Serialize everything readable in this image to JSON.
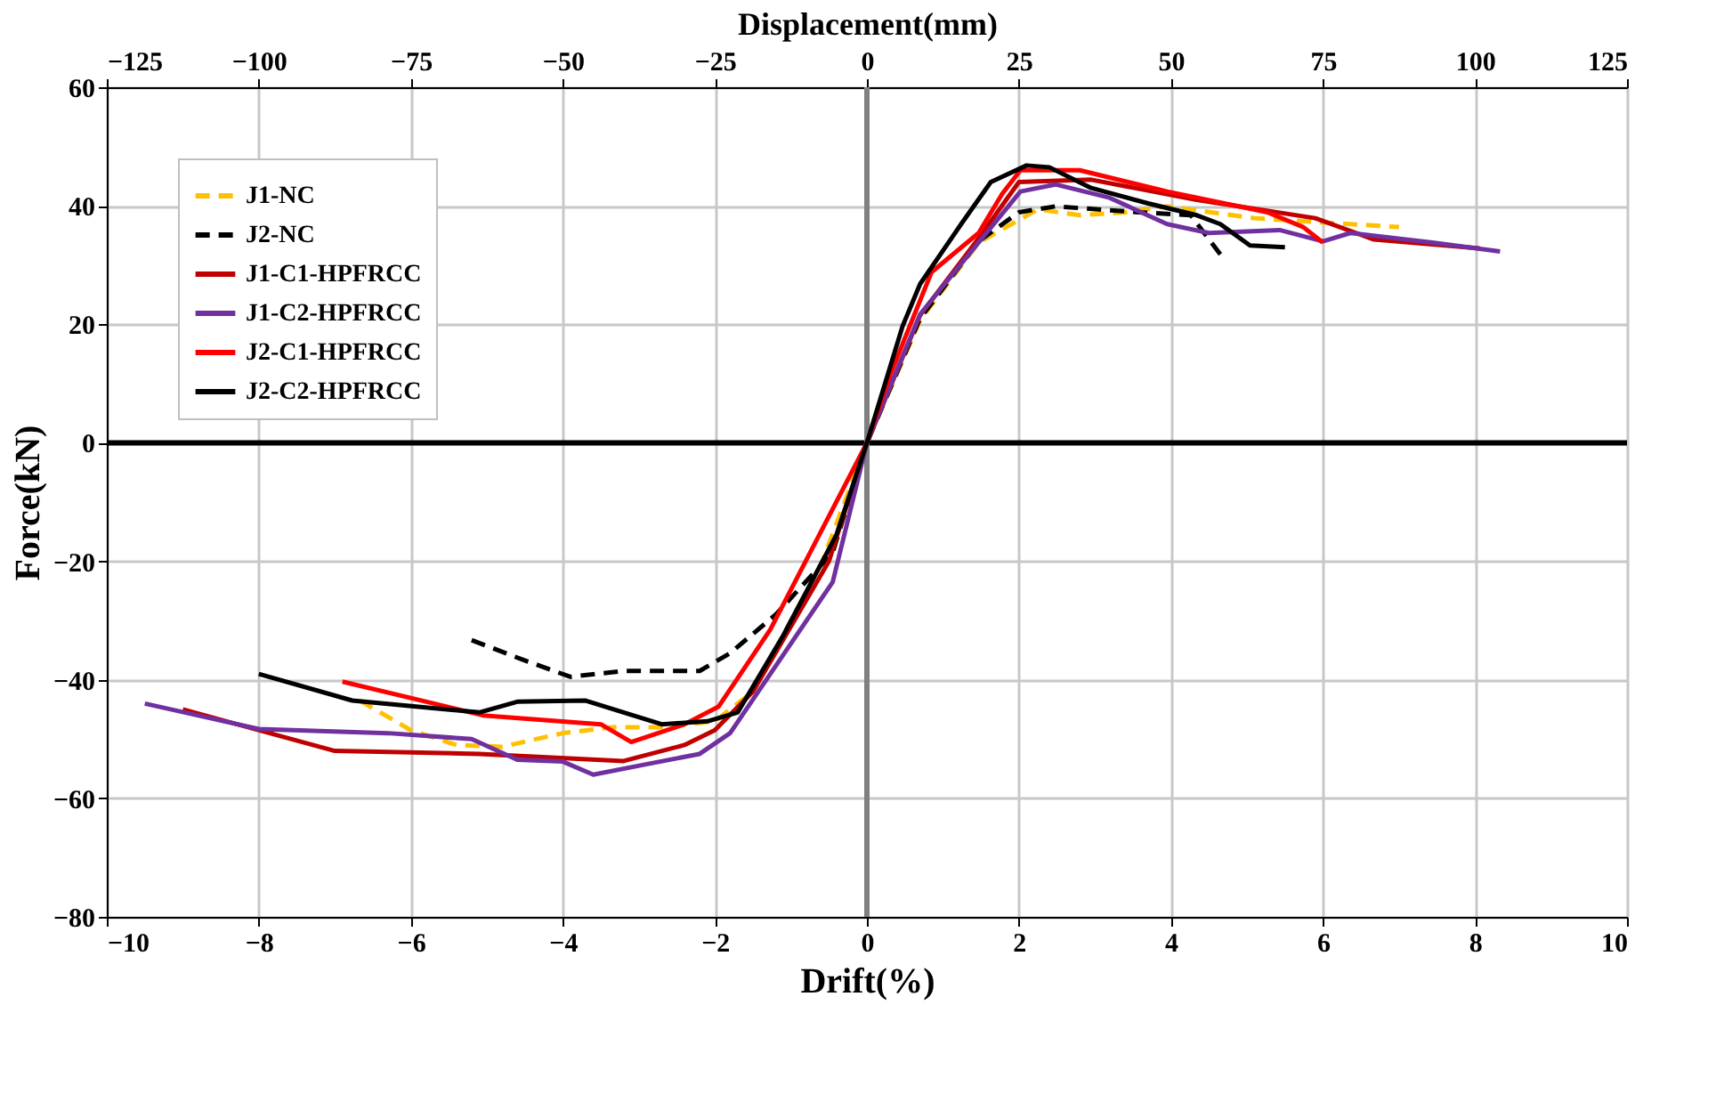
{
  "chart_data": {
    "type": "line",
    "xlabel": "Drift(%)",
    "ylabel": "Force(kN)",
    "x2label": "Displacement(mm)",
    "xlim": [
      -10,
      10
    ],
    "xticks": [
      -10,
      -8,
      -6,
      -4,
      -2,
      0,
      2,
      4,
      6,
      8,
      10
    ],
    "x2lim": [
      -125,
      125
    ],
    "x2ticks": [
      -125,
      -100,
      -75,
      -50,
      -25,
      0,
      25,
      50,
      75,
      100,
      125
    ],
    "ylim": [
      -80,
      60
    ],
    "yticks": [
      -80,
      -60,
      -40,
      -20,
      0,
      20,
      40,
      60
    ],
    "grid": true,
    "legend": "top left",
    "ref_lines": [
      {
        "axis": "y",
        "value": 0,
        "color": "#000000"
      },
      {
        "axis": "x",
        "value": 0,
        "color": "#808080"
      }
    ],
    "series": [
      {
        "name": "J1-NC",
        "color": "#ffc000",
        "line_style": "dashed",
        "x": [
          -6.67,
          -6.0,
          -5.4,
          -4.8,
          -4.0,
          -3.35,
          -2.75,
          -2.0,
          -1.5,
          -0.6,
          0,
          0.7,
          1.47,
          2.25,
          2.8,
          3.41,
          3.95,
          5.1,
          7.0
        ],
        "values": [
          -43.5,
          -48.5,
          -51,
          -51.3,
          -49,
          -48,
          -48,
          -47,
          -42,
          -20.5,
          0,
          20.7,
          33.8,
          39.4,
          38.4,
          38.9,
          39.9,
          37.9,
          36.4
        ]
      },
      {
        "name": "J2-NC",
        "color": "#000000",
        "line_style": "dashed",
        "x": [
          -5.2,
          -4.55,
          -3.9,
          -3.2,
          -2.2,
          -1.8,
          -1.2,
          -0.45,
          0,
          0.7,
          1.47,
          2.0,
          2.48,
          3.57,
          4.26,
          4.65
        ],
        "values": [
          -33.3,
          -36.5,
          -39.5,
          -38.5,
          -38.5,
          -35.5,
          -29,
          -18.5,
          0,
          21,
          34,
          38.9,
          39.9,
          38.9,
          38.4,
          31.8
        ]
      },
      {
        "name": "J1-C1-HPFRCC",
        "color": "#c00000",
        "line_style": "solid",
        "x": [
          -9.0,
          -7.0,
          -5.1,
          -3.2,
          -2.4,
          -2.0,
          -1.5,
          -0.5,
          0,
          0.7,
          1.47,
          2.0,
          2.95,
          4.34,
          5.9,
          6.67,
          8.06
        ],
        "values": [
          -45,
          -52,
          -52.5,
          -53.7,
          -51,
          -48.5,
          -42,
          -20,
          0,
          21.5,
          34.5,
          44,
          44.4,
          41,
          37.9,
          34.3,
          32.8
        ]
      },
      {
        "name": "J1-C2-HPFRCC",
        "color": "#7030a0",
        "line_style": "solid",
        "x": [
          -9.5,
          -8.0,
          -6.3,
          -5.2,
          -4.6,
          -4.0,
          -3.6,
          -2.8,
          -2.2,
          -1.8,
          -0.45,
          0,
          0.7,
          1.47,
          2.02,
          2.48,
          3.18,
          3.95,
          4.5,
          5.43,
          6.0,
          6.36,
          7.44,
          8.33
        ],
        "values": [
          -44,
          -48.3,
          -49,
          -50,
          -53.5,
          -53.8,
          -56,
          -54,
          -52.5,
          -49,
          -23.5,
          0,
          21.7,
          33.8,
          42.4,
          43.6,
          41.4,
          36.9,
          35.4,
          35.9,
          34,
          35.4,
          33.8,
          32.3
        ]
      },
      {
        "name": "J2-C1-HPFRCC",
        "color": "#ff0000",
        "line_style": "solid",
        "x": [
          -6.9,
          -5.05,
          -3.5,
          -3.1,
          -2.4,
          -1.95,
          -1.27,
          0,
          0.31,
          0.85,
          1.47,
          1.78,
          2.02,
          2.8,
          3.95,
          5.27,
          5.74,
          6.0
        ],
        "values": [
          -40.3,
          -46,
          -47.5,
          -50.5,
          -47.5,
          -44.5,
          -31.5,
          0,
          11.6,
          28.8,
          35.4,
          42,
          46,
          46,
          42.4,
          38.9,
          36.4,
          33.8
        ]
      },
      {
        "name": "J2-C2-HPFRCC",
        "color": "#000000",
        "line_style": "solid",
        "x": [
          -8.0,
          -6.77,
          -5.1,
          -4.6,
          -3.7,
          -2.7,
          -2.1,
          -1.7,
          -1.1,
          -0.4,
          0,
          0.47,
          0.7,
          1.24,
          1.63,
          2.1,
          2.4,
          2.95,
          3.7,
          4.34,
          4.65,
          5.04,
          5.5
        ],
        "values": [
          -39,
          -43.5,
          -45.5,
          -43.7,
          -43.5,
          -47.5,
          -47,
          -45.5,
          -32.5,
          -15.5,
          0,
          19.7,
          26.8,
          36.9,
          44,
          46.8,
          46.5,
          43,
          40.4,
          38.4,
          36.9,
          33.3,
          33
        ]
      }
    ]
  }
}
